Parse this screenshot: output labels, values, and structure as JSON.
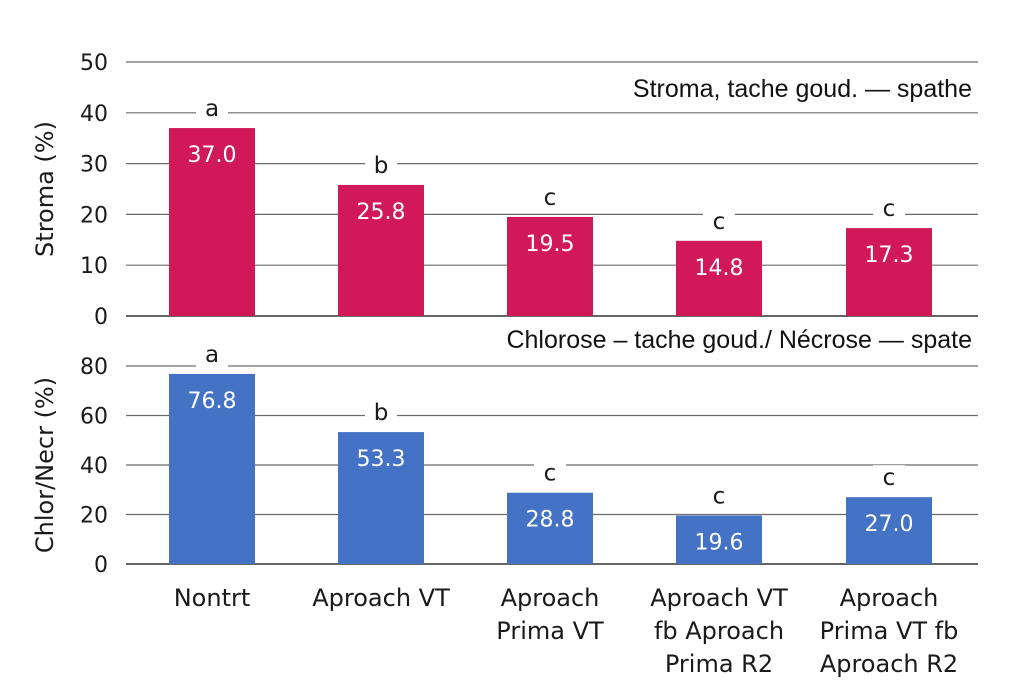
{
  "chart_data": [
    {
      "type": "bar",
      "title": "Stroma, tache goud. — spathe",
      "ylabel": "Stroma (%)",
      "ylim": [
        0,
        50
      ],
      "yticks": [
        "0",
        "10",
        "20",
        "30",
        "40",
        "50"
      ],
      "grid": true,
      "color": "#d1195a",
      "categories": [
        "Nontrt",
        "Aproach VT",
        "Aproach Prima VT",
        "Aproach VT fb Aproach Prima R2",
        "Aproach Prima VT fb Aproach R2"
      ],
      "values": [
        37.0,
        25.8,
        19.5,
        14.8,
        17.3
      ],
      "value_labels": [
        "37.0",
        "25.8",
        "19.5",
        "14.8",
        "17.3"
      ],
      "significance": [
        "a",
        "b",
        "c",
        "c",
        "c"
      ]
    },
    {
      "type": "bar",
      "title": "Chlorose – tache goud./ Nécrose — spate",
      "ylabel": "Chlor/Necr (%)",
      "ylim": [
        0,
        80
      ],
      "yticks": [
        "0",
        "20",
        "40",
        "60",
        "80"
      ],
      "grid": true,
      "color": "#4472c4",
      "categories": [
        "Nontrt",
        "Aproach VT",
        "Aproach Prima VT",
        "Aproach VT fb Aproach Prima R2",
        "Aproach Prima VT fb Aproach R2"
      ],
      "values": [
        76.8,
        53.3,
        28.8,
        19.6,
        27.0
      ],
      "value_labels": [
        "76.8",
        "53.3",
        "28.8",
        "19.6",
        "27.0"
      ],
      "significance": [
        "a",
        "b",
        "c",
        "c",
        "c"
      ]
    }
  ],
  "x_axis": {
    "category_lines": [
      [
        "Nontrt"
      ],
      [
        "Aproach VT"
      ],
      [
        "Aproach",
        "Prima VT"
      ],
      [
        "Aproach VT",
        "fb Aproach",
        "Prima R2"
      ],
      [
        "Aproach",
        "Prima VT fb",
        "Aproach R2"
      ]
    ]
  }
}
